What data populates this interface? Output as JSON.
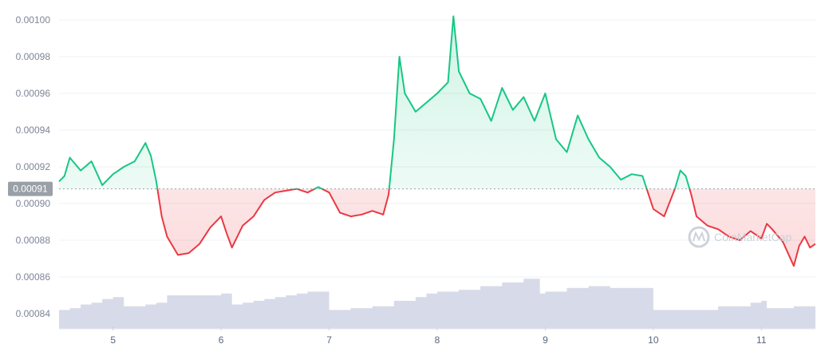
{
  "chart_data": {
    "type": "line",
    "title": "",
    "xlabel": "",
    "ylabel": "",
    "ylim": [
      0.00083,
      0.00101
    ],
    "y_ticks": [
      "0.00100",
      "0.00098",
      "0.00096",
      "0.00094",
      "0.00092",
      "0.00090",
      "0.00088",
      "0.00086",
      "0.00084"
    ],
    "x_ticks": [
      "5",
      "6",
      "7",
      "8",
      "9",
      "10",
      "11"
    ],
    "xlim": [
      4.5,
      11.5
    ],
    "grid": true,
    "baseline": {
      "value": 0.000908,
      "label": "0.00091"
    },
    "colors": {
      "above": "#16c784",
      "below": "#ea3943",
      "volume": "#d7dae8",
      "baseline_label_bg": "#9aa0a8"
    },
    "watermark": "CoinMarketCap",
    "price": {
      "x": [
        4.5,
        4.55,
        4.6,
        4.7,
        4.8,
        4.9,
        5.0,
        5.1,
        5.2,
        5.3,
        5.35,
        5.4,
        5.45,
        5.5,
        5.6,
        5.7,
        5.8,
        5.9,
        6.0,
        6.05,
        6.1,
        6.2,
        6.3,
        6.4,
        6.5,
        6.6,
        6.7,
        6.8,
        6.9,
        7.0,
        7.1,
        7.2,
        7.3,
        7.4,
        7.5,
        7.55,
        7.6,
        7.65,
        7.7,
        7.8,
        7.9,
        8.0,
        8.1,
        8.15,
        8.2,
        8.3,
        8.4,
        8.5,
        8.6,
        8.7,
        8.8,
        8.9,
        9.0,
        9.1,
        9.2,
        9.3,
        9.4,
        9.5,
        9.6,
        9.7,
        9.8,
        9.9,
        10.0,
        10.1,
        10.2,
        10.25,
        10.3,
        10.35,
        10.4,
        10.5,
        10.6,
        10.7,
        10.8,
        10.9,
        11.0,
        11.05,
        11.1,
        11.2,
        11.3,
        11.35,
        11.4,
        11.45,
        11.5
      ],
      "y": [
        0.000912,
        0.000915,
        0.000925,
        0.000918,
        0.000923,
        0.00091,
        0.000916,
        0.00092,
        0.000923,
        0.000933,
        0.000926,
        0.000912,
        0.000893,
        0.000882,
        0.000872,
        0.000873,
        0.000878,
        0.000887,
        0.000893,
        0.000884,
        0.000876,
        0.000888,
        0.000893,
        0.000902,
        0.000906,
        0.000907,
        0.000908,
        0.000906,
        0.000909,
        0.000906,
        0.000895,
        0.000893,
        0.000894,
        0.000896,
        0.000894,
        0.000905,
        0.000935,
        0.00098,
        0.00096,
        0.00095,
        0.000955,
        0.00096,
        0.000966,
        0.001002,
        0.000972,
        0.00096,
        0.000957,
        0.000945,
        0.000963,
        0.000951,
        0.000958,
        0.000945,
        0.00096,
        0.000935,
        0.000928,
        0.000948,
        0.000935,
        0.000925,
        0.00092,
        0.000913,
        0.000916,
        0.000915,
        0.000897,
        0.000893,
        0.000908,
        0.000918,
        0.000915,
        0.000905,
        0.000893,
        0.000888,
        0.000886,
        0.000882,
        0.00088,
        0.000885,
        0.000881,
        0.000889,
        0.000886,
        0.000879,
        0.000866,
        0.000877,
        0.000882,
        0.000876,
        0.000878
      ]
    },
    "volume": {
      "x": [
        4.5,
        4.6,
        4.7,
        4.8,
        4.9,
        5.0,
        5.1,
        5.2,
        5.3,
        5.4,
        5.5,
        5.6,
        5.7,
        5.8,
        5.9,
        6.0,
        6.1,
        6.2,
        6.3,
        6.4,
        6.5,
        6.6,
        6.7,
        6.8,
        6.9,
        7.0,
        7.05,
        7.2,
        7.4,
        7.6,
        7.8,
        7.9,
        8.0,
        8.2,
        8.4,
        8.6,
        8.8,
        8.95,
        9.0,
        9.2,
        9.4,
        9.6,
        9.8,
        10.0,
        10.05,
        10.3,
        10.6,
        10.9,
        11.0,
        11.05,
        11.3,
        11.5
      ],
      "y": [
        0.000842,
        0.000843,
        0.000845,
        0.000846,
        0.000848,
        0.000849,
        0.000844,
        0.000844,
        0.000845,
        0.000846,
        0.00085,
        0.00085,
        0.00085,
        0.00085,
        0.00085,
        0.000851,
        0.000845,
        0.000846,
        0.000847,
        0.000848,
        0.000849,
        0.00085,
        0.000851,
        0.000852,
        0.000852,
        0.000842,
        0.000842,
        0.000843,
        0.000844,
        0.000847,
        0.000849,
        0.000851,
        0.000852,
        0.000853,
        0.000855,
        0.000857,
        0.000859,
        0.000851,
        0.000852,
        0.000854,
        0.000855,
        0.000854,
        0.000854,
        0.000842,
        0.000842,
        0.000842,
        0.000844,
        0.000846,
        0.000847,
        0.000843,
        0.000844,
        0.000845
      ]
    }
  }
}
